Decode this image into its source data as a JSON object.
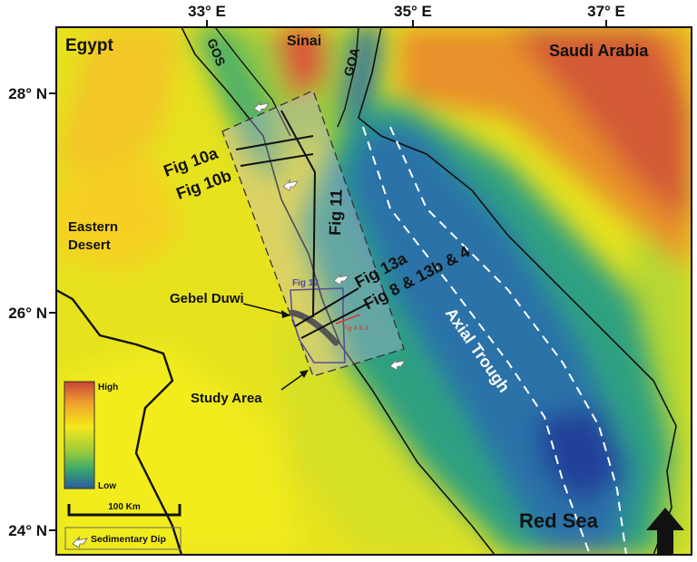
{
  "axes": {
    "longitude_labels": [
      "33° E",
      "35° E",
      "37° E"
    ],
    "latitude_labels": [
      "28° N",
      "26° N",
      "24° N"
    ]
  },
  "places": {
    "egypt": "Egypt",
    "sinai": "Sinai",
    "saudi_arabia": "Saudi Arabia",
    "eastern_desert_line1": "Eastern",
    "eastern_desert_line2": "Desert",
    "gos": "GOS",
    "goa": "GOA",
    "red_sea": "Red Sea",
    "axial_trough": "Axial Trough",
    "gebel_duwi": "Gebel Duwi",
    "study_area": "Study Area"
  },
  "figure_refs": {
    "fig10a": "Fig 10a",
    "fig10b": "Fig 10b",
    "fig11": "Fig 11",
    "fig13a": "Fig 13a",
    "fig8_13b_4": "Fig 8 & 13b & 4",
    "fig12": "Fig 12",
    "fig4_8": "Fig 4 & 8"
  },
  "legend": {
    "high": "High",
    "low": "Low",
    "scale_bar": "100 Km",
    "sedimentary_dip": "Sedimentary Dip",
    "colors": [
      "#c8433a",
      "#f0a030",
      "#f5e81a",
      "#9ccc3a",
      "#3aa86a",
      "#2a5aa0"
    ]
  },
  "icons": [
    "north-arrow-icon",
    "dip-arrow-icon"
  ]
}
